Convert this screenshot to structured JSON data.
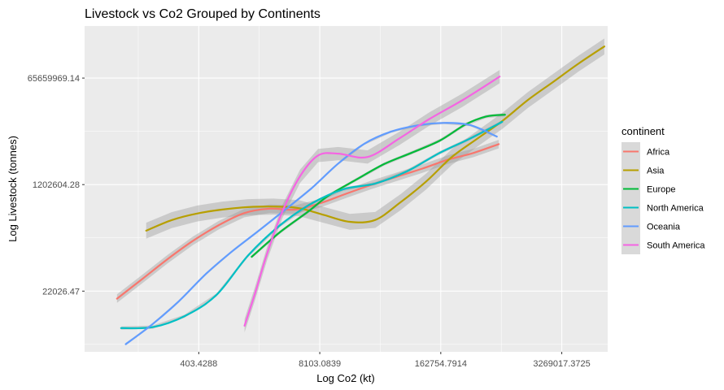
{
  "chart_data": {
    "type": "line",
    "title": "Livestock vs Co2 Grouped by Continents",
    "xlabel": "Log Co2 (kt)",
    "ylabel": "Log Livestock (tonnes)",
    "x_scale": "log",
    "y_scale": "log",
    "x_ticks": [
      {
        "value": 403.4288,
        "label": "403.4288"
      },
      {
        "value": 8103.0839,
        "label": "8103.0839"
      },
      {
        "value": 162754.7914,
        "label": "162754.7914"
      },
      {
        "value": 3269017.3725,
        "label": "3269017.3725"
      }
    ],
    "y_ticks": [
      {
        "value": 22026.47,
        "label": "22026.47"
      },
      {
        "value": 1202604.28,
        "label": "1202604.28"
      },
      {
        "value": 65659969.14,
        "label": "65659969.14"
      }
    ],
    "xlim": [
      23.8,
      10200000
    ],
    "ylim": [
      2255,
      464000000
    ],
    "grid": true,
    "legend_position": "right",
    "legend_title": "continent",
    "series": [
      {
        "name": "Africa",
        "color": "#F8766D",
        "band": 0.16,
        "x": [
          53.1,
          99.8,
          187.6,
          352.6,
          662.5,
          1245,
          2340,
          4398,
          8266,
          15530,
          29190,
          54860,
          103100,
          193800,
          364200,
          684500
        ],
        "y": [
          16600,
          34900,
          73900,
          147000,
          262000,
          412000,
          487000,
          470000,
          600000,
          853000,
          1190000,
          1620000,
          2190000,
          3060000,
          3940000,
          5500000
        ]
      },
      {
        "name": "Asia",
        "color": "#B79F00",
        "band": 0.3,
        "x": [
          109.5,
          205.8,
          386.9,
          727.2,
          1367,
          2569,
          4828,
          9074,
          17060,
          32060,
          60250,
          113200,
          212800,
          400100,
          751900,
          1413000,
          2656000,
          4992000,
          9384000
        ],
        "y": [
          213000,
          317000,
          406000,
          471000,
          516000,
          527000,
          497000,
          383000,
          297000,
          319000,
          623000,
          1350000,
          3360000,
          6700000,
          13200000,
          28900000,
          57200000,
          114000000,
          215000000
        ]
      },
      {
        "name": "Europe",
        "color": "#00BA38",
        "band": 0.06,
        "x": [
          1500,
          3000,
          6000,
          10000,
          20000,
          40000,
          80000,
          160000,
          300000,
          500000,
          800000
        ],
        "y": [
          80000,
          200000,
          430000,
          790000,
          1450000,
          2600000,
          4000000,
          6300000,
          11500000,
          15500000,
          16600000
        ]
      },
      {
        "name": "North America",
        "color": "#00BFC4",
        "band": 0.06,
        "x": [
          58.8,
          129.2,
          284.1,
          624.3,
          1372,
          3015,
          6627,
          14560,
          32000,
          70340,
          154600,
          339800,
          746700
        ],
        "y": [
          5500,
          5700,
          8600,
          19000,
          84000,
          260000,
          593000,
          1010000,
          1250000,
          1980000,
          3880000,
          6820000,
          12700000
        ]
      },
      {
        "name": "Oceania",
        "color": "#619CFF",
        "band": 0.04,
        "x": [
          66,
          127.3,
          245.7,
          474.1,
          914.8,
          1765,
          3406,
          6573,
          12680,
          24470,
          47220,
          91120,
          175800,
          339300,
          654700
        ],
        "y": [
          3000,
          6300,
          15000,
          41000,
          97000,
          210000,
          463000,
          1040000,
          2620000,
          5580000,
          8770000,
          11100000,
          12200000,
          11200000,
          7300000
        ]
      },
      {
        "name": "South America",
        "color": "#F564E3",
        "band": 0.25,
        "x": [
          1256,
          1623,
          2196,
          3196,
          4962,
          7778,
          12820,
          26550,
          58600,
          122600,
          281500,
          700000
        ],
        "y": [
          6000,
          20000,
          90000,
          433000,
          1640000,
          3590000,
          3850000,
          3390000,
          6850000,
          14100000,
          28900000,
          69400000
        ]
      }
    ]
  }
}
